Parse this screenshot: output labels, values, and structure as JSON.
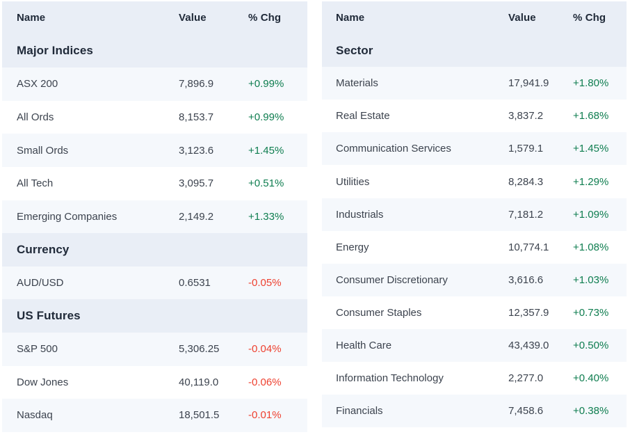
{
  "colors": {
    "positive": "#0e7d4f",
    "negative": "#ee4130",
    "header_bg": "#e9eef6",
    "alt_row_bg": "#f5f8fc",
    "header_text": "#202a39",
    "body_text": "#3c434e",
    "page_bg": "#ffffff"
  },
  "tables": [
    {
      "id": "indices",
      "columns": {
        "name": "Name",
        "value": "Value",
        "chg": "% Chg"
      },
      "sections": [
        {
          "title": "Major Indices",
          "rows": [
            {
              "name": "ASX 200",
              "value": "7,896.9",
              "chg": "+0.99%",
              "direction": "up"
            },
            {
              "name": "All Ords",
              "value": "8,153.7",
              "chg": "+0.99%",
              "direction": "up"
            },
            {
              "name": "Small Ords",
              "value": "3,123.6",
              "chg": "+1.45%",
              "direction": "up"
            },
            {
              "name": "All Tech",
              "value": "3,095.7",
              "chg": "+0.51%",
              "direction": "up"
            },
            {
              "name": "Emerging Companies",
              "value": "2,149.2",
              "chg": "+1.33%",
              "direction": "up"
            }
          ]
        },
        {
          "title": "Currency",
          "rows": [
            {
              "name": "AUD/USD",
              "value": "0.6531",
              "chg": "-0.05%",
              "direction": "down"
            }
          ]
        },
        {
          "title": "US Futures",
          "rows": [
            {
              "name": "S&P 500",
              "value": "5,306.25",
              "chg": "-0.04%",
              "direction": "down"
            },
            {
              "name": "Dow Jones",
              "value": "40,119.0",
              "chg": "-0.06%",
              "direction": "down"
            },
            {
              "name": "Nasdaq",
              "value": "18,501.5",
              "chg": "-0.01%",
              "direction": "down"
            }
          ]
        }
      ]
    },
    {
      "id": "sectors",
      "columns": {
        "name": "Name",
        "value": "Value",
        "chg": "% Chg"
      },
      "sections": [
        {
          "title": "Sector",
          "rows": [
            {
              "name": "Materials",
              "value": "17,941.9",
              "chg": "+1.80%",
              "direction": "up"
            },
            {
              "name": "Real Estate",
              "value": "3,837.2",
              "chg": "+1.68%",
              "direction": "up"
            },
            {
              "name": "Communication Services",
              "value": "1,579.1",
              "chg": "+1.45%",
              "direction": "up"
            },
            {
              "name": "Utilities",
              "value": "8,284.3",
              "chg": "+1.29%",
              "direction": "up"
            },
            {
              "name": "Industrials",
              "value": "7,181.2",
              "chg": "+1.09%",
              "direction": "up"
            },
            {
              "name": "Energy",
              "value": "10,774.1",
              "chg": "+1.08%",
              "direction": "up"
            },
            {
              "name": "Consumer Discretionary",
              "value": "3,616.6",
              "chg": "+1.03%",
              "direction": "up"
            },
            {
              "name": "Consumer Staples",
              "value": "12,357.9",
              "chg": "+0.73%",
              "direction": "up"
            },
            {
              "name": "Health Care",
              "value": "43,439.0",
              "chg": "+0.50%",
              "direction": "up"
            },
            {
              "name": "Information Technology",
              "value": "2,277.0",
              "chg": "+0.40%",
              "direction": "up"
            },
            {
              "name": "Financials",
              "value": "7,458.6",
              "chg": "+0.38%",
              "direction": "up"
            }
          ]
        }
      ]
    }
  ]
}
